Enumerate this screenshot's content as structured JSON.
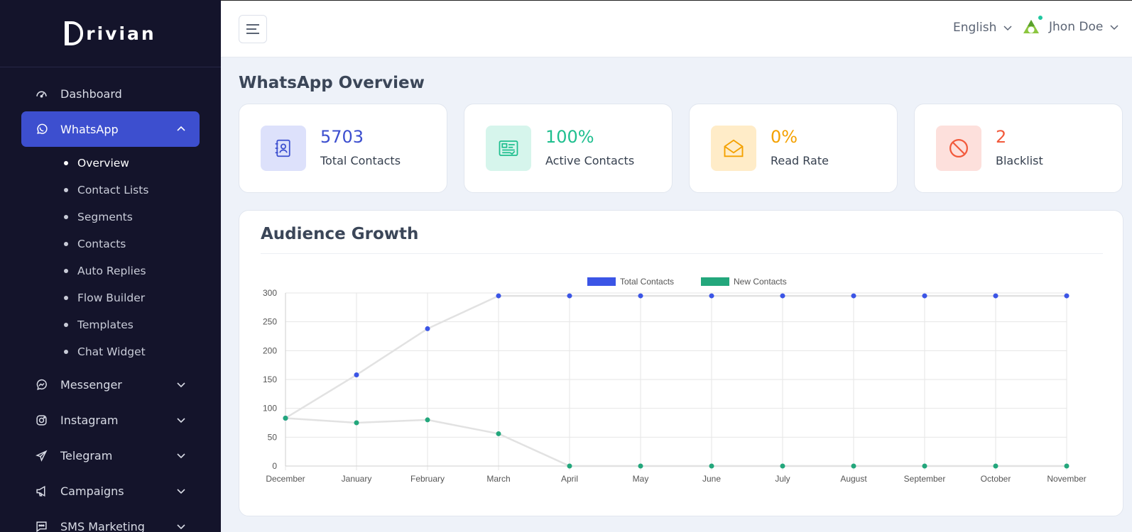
{
  "brand": {
    "name": "rivian"
  },
  "sidebar": {
    "items": [
      {
        "label": "Dashboard",
        "icon": "gauge-icon",
        "active": false,
        "expandable": false
      },
      {
        "label": "WhatsApp",
        "icon": "whatsapp-icon",
        "active": true,
        "expandable": true,
        "expanded": true,
        "sub": [
          {
            "label": "Overview",
            "active": true
          },
          {
            "label": "Contact Lists",
            "active": false
          },
          {
            "label": "Segments",
            "active": false
          },
          {
            "label": "Contacts",
            "active": false
          },
          {
            "label": "Auto Replies",
            "active": false
          },
          {
            "label": "Flow Builder",
            "active": false
          },
          {
            "label": "Templates",
            "active": false
          },
          {
            "label": "Chat Widget",
            "active": false
          }
        ]
      },
      {
        "label": "Messenger",
        "icon": "messenger-icon",
        "expandable": true
      },
      {
        "label": "Instagram",
        "icon": "instagram-icon",
        "expandable": true
      },
      {
        "label": "Telegram",
        "icon": "telegram-icon",
        "expandable": true
      },
      {
        "label": "Campaigns",
        "icon": "megaphone-icon",
        "expandable": true
      },
      {
        "label": "SMS Marketing",
        "icon": "sms-icon",
        "expandable": true
      }
    ]
  },
  "topbar": {
    "language": "English",
    "user_name": "Jhon Doe"
  },
  "page": {
    "title": "WhatsApp Overview"
  },
  "stats": [
    {
      "value": "5703",
      "label": "Total Contacts",
      "color": "#3d4fcf",
      "bg": "#dde1fb",
      "icon": "contact-book-icon"
    },
    {
      "value": "100%",
      "label": "Active Contacts",
      "color": "#1fbf8f",
      "bg": "#d6f5ec",
      "icon": "id-card-icon"
    },
    {
      "value": "0%",
      "label": "Read Rate",
      "color": "#f4a100",
      "bg": "#ffecc8",
      "icon": "open-envelope-icon"
    },
    {
      "value": "2",
      "label": "Blacklist",
      "color": "#f25a3c",
      "bg": "#fde0dc",
      "icon": "block-icon"
    }
  ],
  "chart": {
    "title": "Audience Growth"
  },
  "chart_data": {
    "type": "line",
    "categories": [
      "December",
      "January",
      "February",
      "March",
      "April",
      "May",
      "June",
      "July",
      "August",
      "September",
      "October",
      "November"
    ],
    "series": [
      {
        "name": "Total Contacts",
        "color": "#3b55e6",
        "values": [
          83,
          158,
          238,
          295,
          295,
          295,
          295,
          295,
          295,
          295,
          295,
          295
        ]
      },
      {
        "name": "New Contacts",
        "color": "#23a77c",
        "values": [
          83,
          75,
          80,
          56,
          0,
          0,
          0,
          0,
          0,
          0,
          0,
          0
        ]
      }
    ],
    "yticks": [
      0,
      50,
      100,
      150,
      200,
      250,
      300
    ],
    "ylim": [
      0,
      300
    ],
    "grid": true,
    "legend": "top-center"
  }
}
